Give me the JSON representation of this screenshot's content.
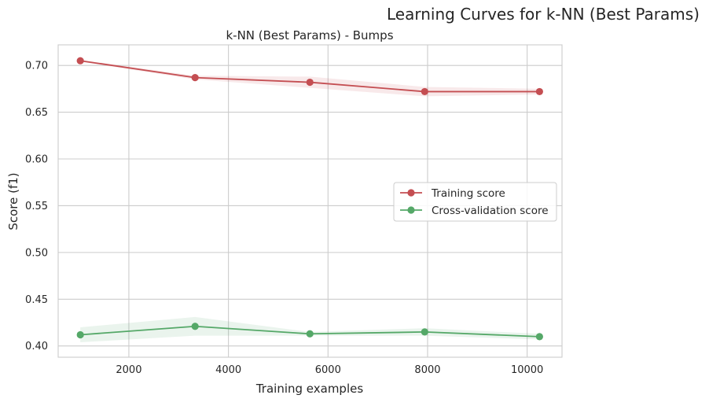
{
  "chart_data": {
    "type": "line",
    "suptitle": "Learning Curves for k-NN (Best Params)",
    "title": "k-NN (Best Params) - Bumps",
    "xlabel": "Training examples",
    "ylabel": "Score (f1)",
    "xlim": [
      580,
      10700
    ],
    "ylim": [
      0.388,
      0.722
    ],
    "xticks": [
      2000,
      4000,
      6000,
      8000,
      10000
    ],
    "yticks": [
      0.4,
      0.45,
      0.5,
      0.55,
      0.6,
      0.65,
      0.7
    ],
    "xtick_labels": [
      "2000",
      "4000",
      "6000",
      "8000",
      "10000"
    ],
    "ytick_labels": [
      "0.40",
      "0.45",
      "0.50",
      "0.55",
      "0.60",
      "0.65",
      "0.70"
    ],
    "grid": true,
    "legend_position": "center-right",
    "x": [
      1025,
      3330,
      5636,
      7942,
      10248
    ],
    "series": [
      {
        "name": "Training score",
        "color": "#c44e52",
        "values": [
          0.705,
          0.687,
          0.682,
          0.672,
          0.672
        ],
        "lower": [
          0.704,
          0.685,
          0.676,
          0.667,
          0.669
        ],
        "upper": [
          0.706,
          0.689,
          0.688,
          0.677,
          0.675
        ]
      },
      {
        "name": "Cross-validation score",
        "color": "#55a868",
        "values": [
          0.412,
          0.421,
          0.413,
          0.415,
          0.41
        ],
        "lower": [
          0.404,
          0.411,
          0.411,
          0.411,
          0.407
        ],
        "upper": [
          0.42,
          0.431,
          0.415,
          0.419,
          0.413
        ]
      }
    ]
  }
}
